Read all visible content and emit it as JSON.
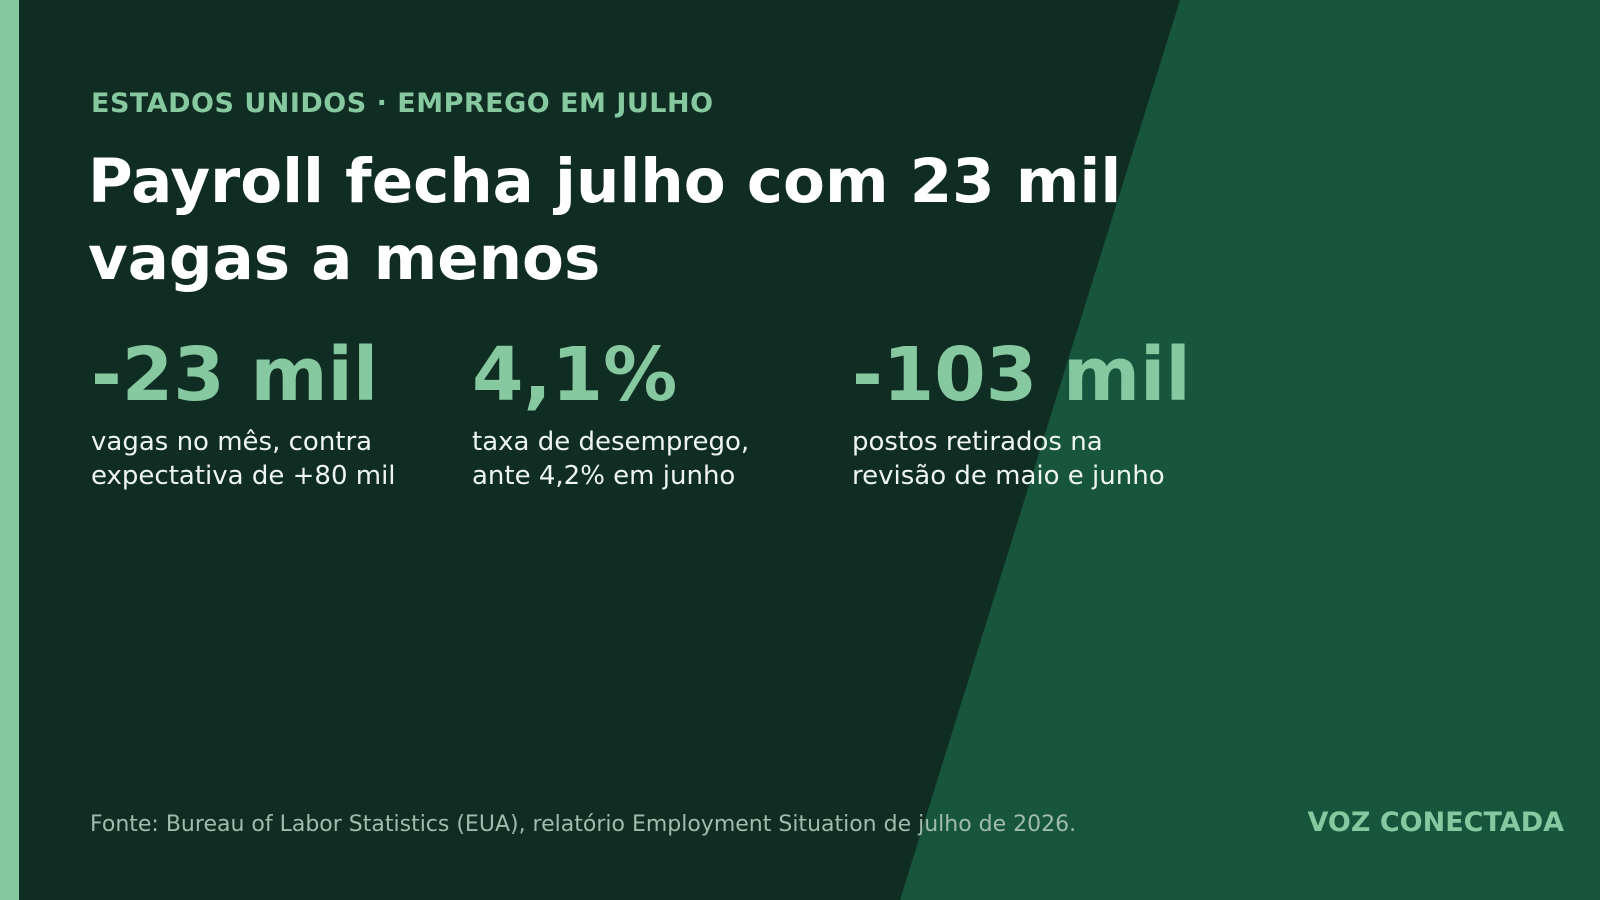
{
  "kicker": "ESTADOS UNIDOS · EMPREGO EM JULHO",
  "title": "Payroll fecha julho com 23 mil vagas a menos",
  "stats": [
    {
      "value": "-23 mil",
      "description": "vagas no mês, contra expectativa de +80 mil"
    },
    {
      "value": "4,1%",
      "description": "taxa de desemprego, ante 4,2% em junho"
    },
    {
      "value": "-103 mil",
      "description": "postos retirados na revisão de maio e junho"
    }
  ],
  "source": "Fonte: Bureau of Labor Statistics (EUA), relatório Employment Situation de julho de 2026.",
  "brand": "VOZ CONECTADA"
}
